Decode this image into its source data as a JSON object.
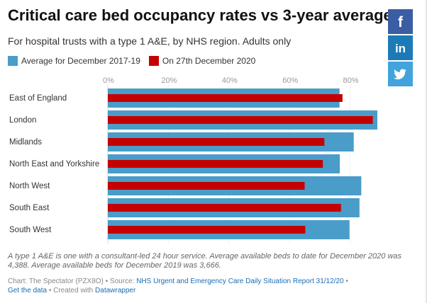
{
  "header": {
    "title": "Critical care bed occupancy rates vs 3-year average",
    "subtitle": "For hospital trusts with a type 1 A&E, by NHS region. Adults only"
  },
  "social": [
    {
      "name": "facebook",
      "icon": "facebook-icon",
      "glyph": "f",
      "color": "#3a5da3"
    },
    {
      "name": "linkedin",
      "icon": "linkedin-icon",
      "glyph": "in",
      "color": "#1c7bb7"
    },
    {
      "name": "twitter",
      "icon": "twitter-icon",
      "glyph": "",
      "color": "#42a3dd"
    }
  ],
  "chart_data": {
    "type": "bar",
    "orientation": "horizontal",
    "categories": [
      "East of England",
      "London",
      "Midlands",
      "North East and Yorkshire",
      "North West",
      "South East",
      "South West"
    ],
    "series": [
      {
        "name": "Average for December 2017-19",
        "color": "#4a9cc9",
        "values": [
          76.5,
          89,
          81.2,
          76.6,
          83.7,
          83.1,
          79.8
        ]
      },
      {
        "name": "On 27th December 2020",
        "color": "#c40000",
        "values": [
          77.5,
          87.5,
          71.5,
          71,
          65,
          77,
          65.2
        ]
      }
    ],
    "x_ticks": [
      "0%",
      "20%",
      "40%",
      "60%",
      "80%"
    ],
    "x_tick_values": [
      0,
      20,
      40,
      60,
      80
    ],
    "xlim": [
      0,
      89
    ],
    "grid": true,
    "legend": "top-left"
  },
  "notes": "A type 1 A&E is one with a consultant-led 24 hour service. Average available beds to date for December 2020 was 4,388. Average available beds for December 2019 was 3,666.",
  "footer": {
    "chart_credit": "Chart: The Spectator (PZX8O)",
    "source_prefix": "• Source:",
    "source_link": "NHS Urgent and Emergency Care Daily Situation Report 31/12/20",
    "bullet": "•",
    "get_data": "Get the data",
    "created_prefix": "• Created with",
    "datawrapper": "Datawrapper"
  }
}
